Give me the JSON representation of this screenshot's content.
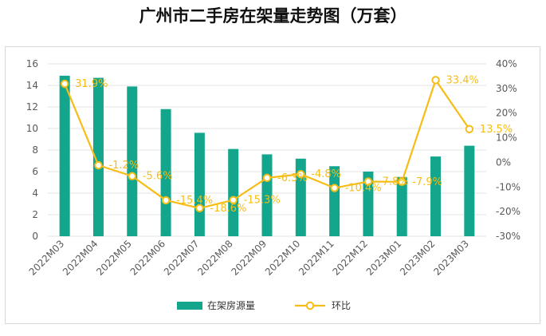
{
  "title": "广州市二手房在架量走势图（万套）",
  "colors": {
    "bar": "#13a68d",
    "line": "#f6bd16",
    "grid": "#e3e3e3",
    "axis_text": "#595959"
  },
  "chart_data": {
    "type": "bar+line",
    "title": "广州市二手房在架量走势图（万套）",
    "categories": [
      "2022M03",
      "2022M04",
      "2022M05",
      "2022M06",
      "2022M07",
      "2022M08",
      "2022M09",
      "2022M10",
      "2022M11",
      "2022M12",
      "2023M01",
      "2023M02",
      "2023M03"
    ],
    "series": [
      {
        "name": "在架房源量",
        "type": "bar",
        "axis": "left",
        "values": [
          14.9,
          14.7,
          13.9,
          11.8,
          9.6,
          8.1,
          7.6,
          7.2,
          6.5,
          6.0,
          5.5,
          7.4,
          8.4
        ]
      },
      {
        "name": "环比",
        "type": "line",
        "axis": "right",
        "unit": "%",
        "values": [
          31.9,
          -1.2,
          -5.6,
          -15.4,
          -18.6,
          -15.3,
          -6.3,
          -4.8,
          -10.4,
          -7.8,
          -7.9,
          33.4,
          13.5
        ],
        "labels": [
          "31.9%",
          "-1.2%",
          "-5.6%",
          "-15.4%",
          "-18.6%",
          "-15.3%",
          "-6.3%",
          "-4.8%",
          "-10.4%",
          "-7.8%",
          "-7.9%",
          "33.4%",
          "13.5%"
        ]
      }
    ],
    "y_left": {
      "min": 0,
      "max": 16,
      "step": 2,
      "ticks": [
        "0",
        "2",
        "4",
        "6",
        "8",
        "10",
        "12",
        "14",
        "16"
      ]
    },
    "y_right": {
      "min": -30,
      "max": 40,
      "step": 10,
      "ticks": [
        "-30%",
        "-20%",
        "-10%",
        "0%",
        "10%",
        "20%",
        "30%",
        "40%"
      ]
    },
    "legend": {
      "position": "bottom",
      "items": [
        "在架房源量",
        "环比"
      ]
    },
    "grid": true
  }
}
